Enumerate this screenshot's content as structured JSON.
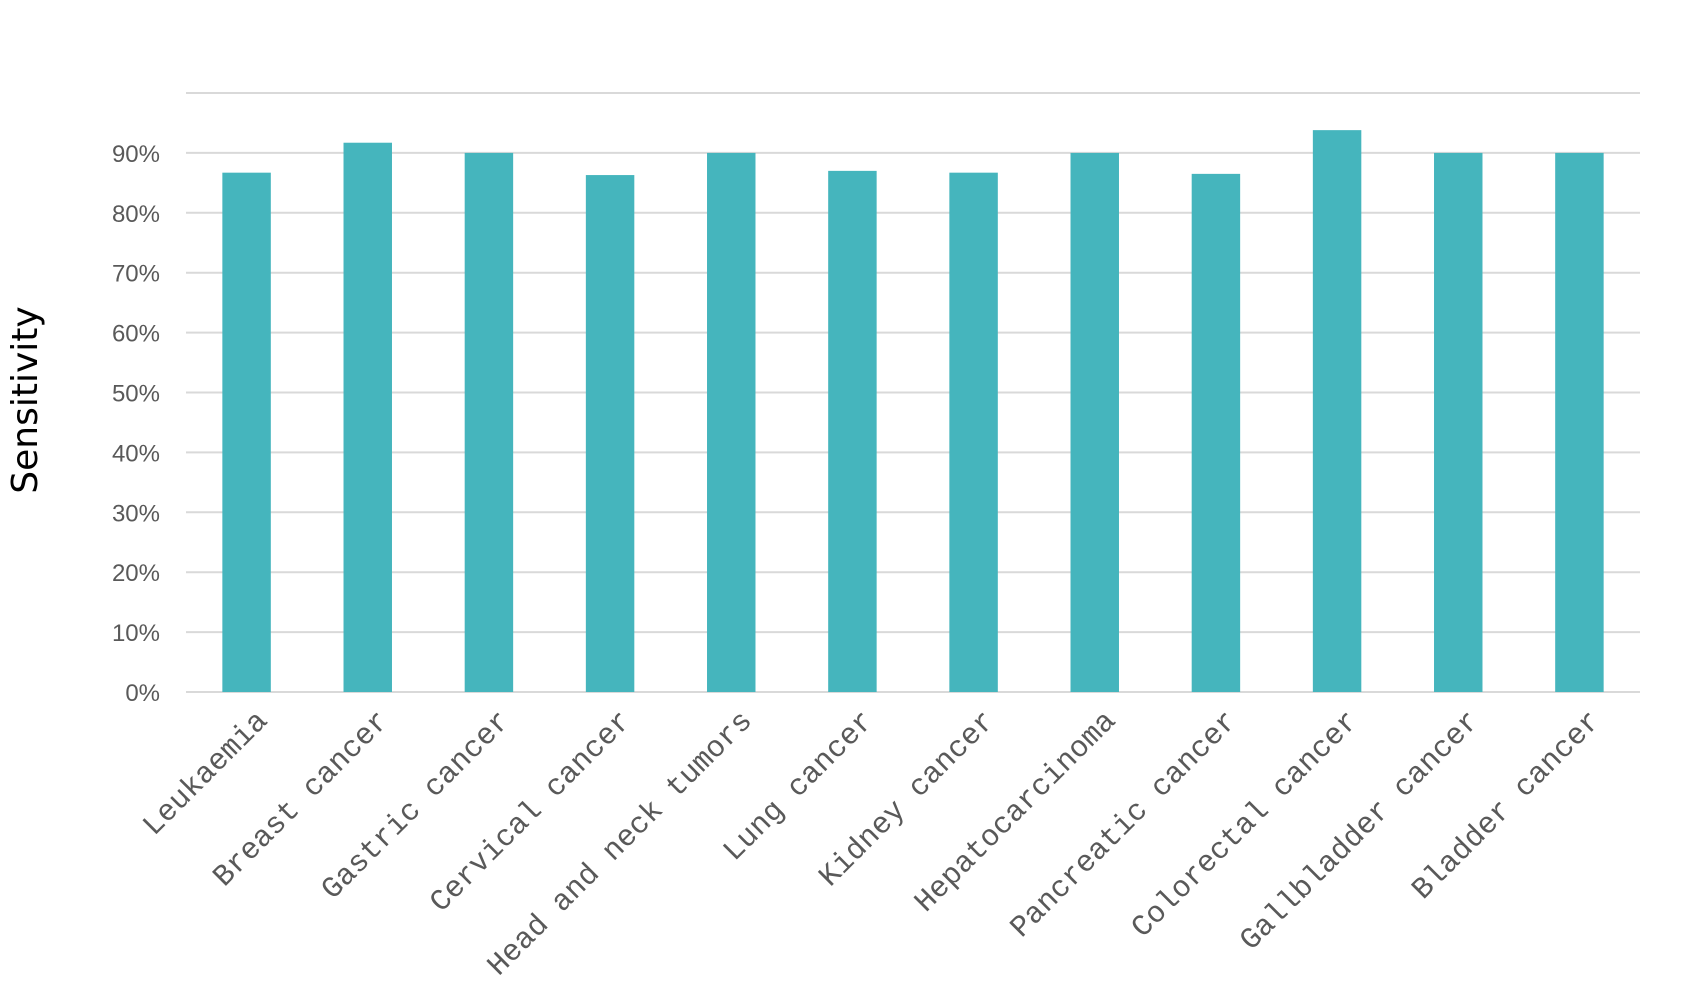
{
  "chart_data": {
    "type": "bar",
    "title": "",
    "xlabel": "",
    "ylabel": "Sensitivity",
    "categories": [
      "Leukaemia",
      "Breast cancer",
      "Gastric cancer",
      "Cervical cancer",
      "Head and neck tumors",
      "Lung cancer",
      "Kidney cancer",
      "Hepatocarcinoma",
      "Pancreatic cancer",
      "Colorectal cancer",
      "Gallbladder cancer",
      "Bladder cancer"
    ],
    "values": [
      86.7,
      91.7,
      90.0,
      86.3,
      90.0,
      87.0,
      86.7,
      90.0,
      86.5,
      93.8,
      90.0,
      90.0
    ],
    "ylim": [
      0,
      100
    ],
    "yticks": [
      "0%",
      "10%",
      "20%",
      "30%",
      "40%",
      "50%",
      "60%",
      "70%",
      "80%",
      "90%"
    ],
    "grid": true,
    "legend": "none",
    "colors": {
      "bar": "#45b5bd",
      "grid": "#d9d9d9",
      "tick_text": "#595959"
    }
  }
}
